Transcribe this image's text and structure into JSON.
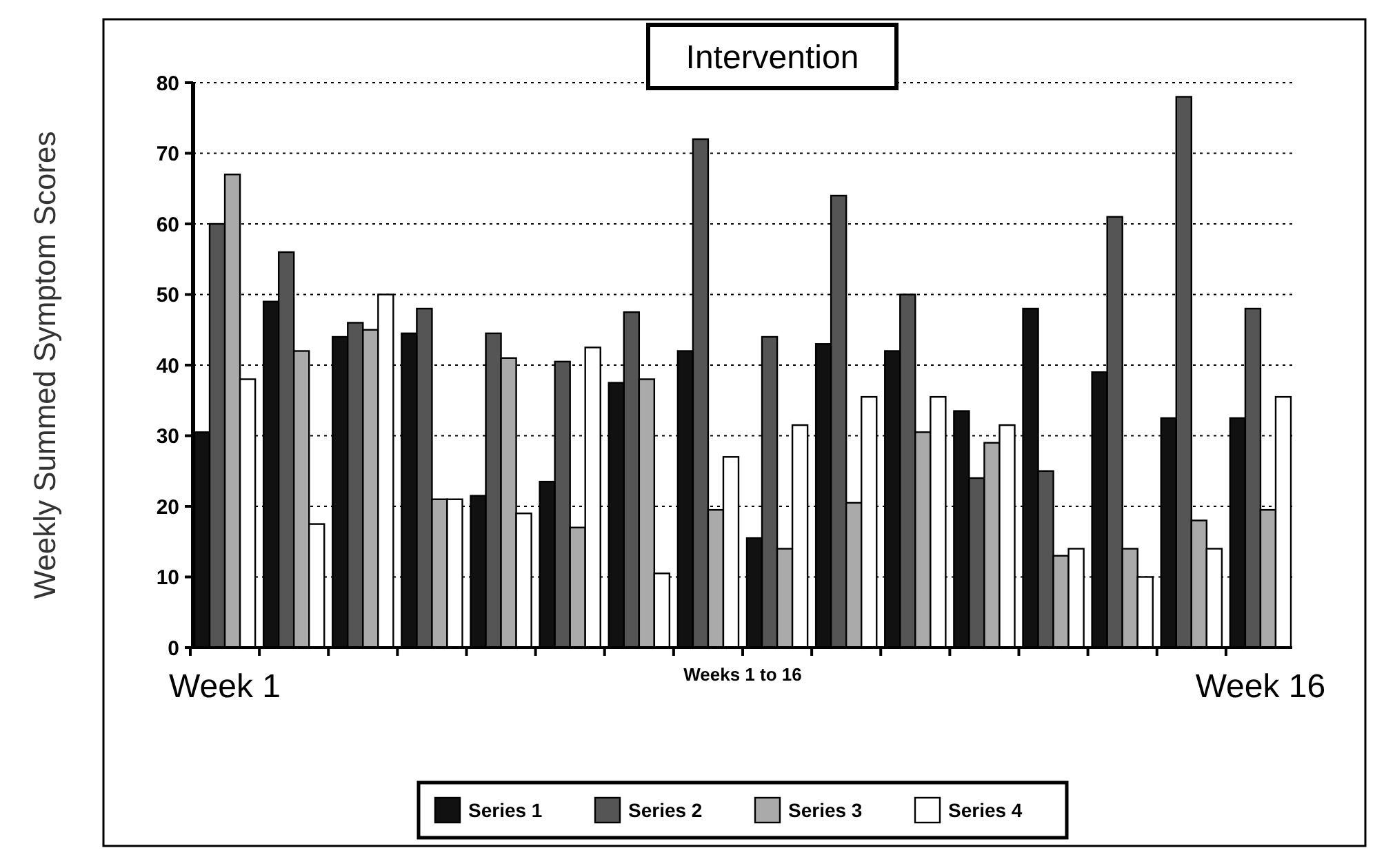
{
  "chart_data": {
    "type": "bar",
    "xlabel": "Weeks 1 to 16",
    "ylabel": "Weekly Summed Symptom Scores",
    "categories": [
      "Week 1",
      null,
      null,
      null,
      null,
      null,
      null,
      null,
      null,
      null,
      null,
      null,
      null,
      null,
      null,
      "Week 16"
    ],
    "series": [
      {
        "name": "Series 1",
        "color": "#111111",
        "values": [
          30.5,
          49,
          44,
          44.5,
          21.5,
          23.5,
          37.5,
          42,
          15.5,
          43,
          42,
          33.5,
          48,
          39,
          32.5,
          32.5
        ]
      },
      {
        "name": "Series 2",
        "color": "#555555",
        "values": [
          60,
          56,
          46,
          48,
          44.5,
          40.5,
          47.5,
          72,
          44,
          64,
          50,
          24,
          25,
          61,
          78,
          48
        ]
      },
      {
        "name": "Series 3",
        "color": "#aaaaaa",
        "values": [
          67,
          42,
          45,
          21,
          41,
          17,
          38,
          19.5,
          14,
          20.5,
          30.5,
          29,
          13,
          14,
          18,
          19.5
        ]
      },
      {
        "name": "Series 4",
        "color": "#ffffff",
        "values": [
          38,
          17.5,
          50,
          21,
          19,
          42.5,
          10.5,
          27,
          31.5,
          35.5,
          35.5,
          31.5,
          14,
          10,
          14,
          35.5
        ]
      }
    ],
    "ylim": [
      0,
      80
    ],
    "yticks": [
      0,
      10,
      20,
      30,
      40,
      50,
      60,
      70,
      80
    ],
    "grid": "y",
    "legend": "bottom",
    "annotations": [
      "Intervention"
    ]
  }
}
